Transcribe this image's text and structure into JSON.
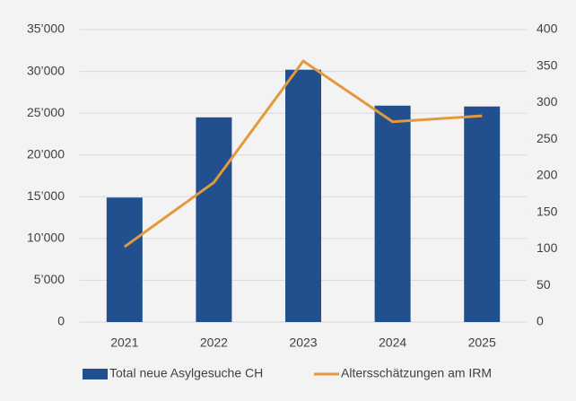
{
  "chart_data": {
    "type": "bar-line",
    "categories": [
      "2021",
      "2022",
      "2023",
      "2024",
      "2025"
    ],
    "series": [
      {
        "name": "Total neue Asylgesuche CH",
        "type": "bar",
        "color": "#22508f",
        "axis": "y",
        "values": [
          14900,
          24500,
          30200,
          25900,
          25800
        ]
      },
      {
        "name": "Altersschätzungen am IRM",
        "type": "line",
        "color": "#e3993c",
        "axis": "y2",
        "values": [
          103,
          191,
          357,
          274,
          282
        ]
      }
    ],
    "ylim": [
      0,
      35000
    ],
    "yticks": [
      0,
      {
        "value": 5000,
        "label": "5’000"
      },
      {
        "value": 10000,
        "label": "10’000"
      },
      {
        "value": 15000,
        "label": "15’000"
      },
      {
        "value": 20000,
        "label": "20’000"
      },
      {
        "value": 25000,
        "label": "25’000"
      },
      {
        "value": 30000,
        "label": "30’000"
      },
      {
        "value": 35000,
        "label": "35’000"
      }
    ],
    "y2lim": [
      0,
      400
    ],
    "y2ticks": [
      0,
      50,
      100,
      150,
      200,
      250,
      300,
      350,
      400
    ],
    "grid": true,
    "legend": "bottom"
  }
}
